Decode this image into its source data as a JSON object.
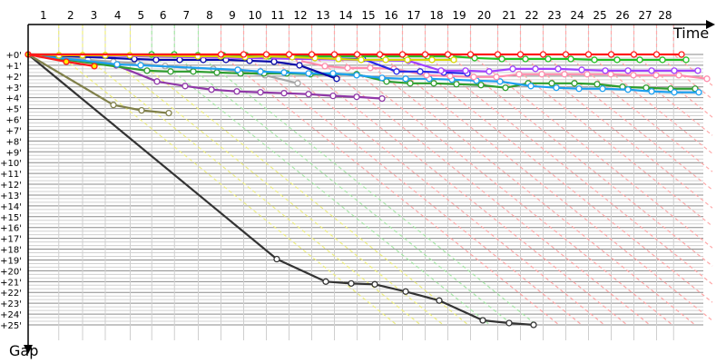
{
  "chart_data": {
    "type": "line",
    "xlabel": "Time",
    "ylabel": "Gap",
    "y_tick_labels": [
      "+0'",
      "+1'",
      "+2'",
      "+3'",
      "+4'",
      "+5'",
      "+6'",
      "+7'",
      "+8'",
      "+9'",
      "+10'",
      "+11'",
      "+12'",
      "+13'",
      "+14'",
      "+15'",
      "+16'",
      "+17'",
      "+18'",
      "+19'",
      "+20'",
      "+21'",
      "+22'",
      "+23'",
      "+24'",
      "+25'"
    ],
    "ylim": [
      0,
      25
    ],
    "y_inverted": true,
    "grid": true,
    "lap_labels": [
      "1",
      "2",
      "3",
      "4",
      "5",
      "6",
      "7",
      "8",
      "9",
      "10",
      "11",
      "12",
      "13",
      "14",
      "15",
      "16",
      "17",
      "18",
      "19",
      "20",
      "21",
      "22",
      "23",
      "24",
      "25",
      "26",
      "27",
      "28"
    ],
    "lap_end_times": [
      2.7,
      4.8,
      6.8,
      9.0,
      10.9,
      12.9,
      15.0,
      17.0,
      19.0,
      21.0,
      23.0,
      25.0,
      27.0,
      29.0,
      31.0,
      33.0,
      35.0,
      37.0,
      39.0,
      41.4,
      43.4,
      45.4,
      47.4,
      49.4,
      51.4,
      53.4,
      55.4,
      56.9
    ],
    "lap_line_colors": [
      "#eeee80",
      "#eeee80",
      "#eeee80",
      "#eeee80",
      "#a8e8a8",
      "#a8e8a8",
      "#a8e8a8",
      "#ffa8a8",
      "#ffa8a8",
      "#ffa8a8",
      "#ffa8a8",
      "#ffa8a8",
      "#ffa8a8",
      "#ffa8a8",
      "#ffa8a8",
      "#ffa8a8",
      "#ffa8a8",
      "#ffa8a8",
      "#ffa8a8",
      "#ffa8a8",
      "#ffa8a8",
      "#ffa8a8",
      "#ffa8a8",
      "#ffa8a8",
      "#ffa8a8",
      "#ffa8a8",
      "#ffa8a8",
      "#ffa8a8"
    ],
    "series": [
      {
        "color": "#333333",
        "marker_fill": "#ffffff",
        "points": [
          [
            0,
            0
          ],
          [
            21.92,
            18.92
          ],
          [
            26.24,
            21.0
          ],
          [
            28.48,
            21.17
          ],
          [
            30.56,
            21.25
          ],
          [
            33.28,
            21.92
          ],
          [
            36.24,
            22.75
          ],
          [
            40.08,
            24.58
          ],
          [
            42.4,
            24.83
          ],
          [
            44.56,
            25.0
          ]
        ]
      },
      {
        "color": "#80804a",
        "marker_fill": "#ffffff",
        "points": [
          [
            0,
            0
          ],
          [
            7.52,
            4.67
          ],
          [
            10.0,
            5.17
          ],
          [
            12.4,
            5.42
          ]
        ]
      },
      {
        "color": "#9038a8",
        "marker_fill": "#ffffff",
        "points": [
          [
            0,
            0
          ],
          [
            7.76,
            1.0
          ],
          [
            11.36,
            2.5
          ],
          [
            13.84,
            2.92
          ],
          [
            16.16,
            3.25
          ],
          [
            18.4,
            3.42
          ],
          [
            20.48,
            3.5
          ],
          [
            22.56,
            3.58
          ],
          [
            24.72,
            3.67
          ],
          [
            26.88,
            3.83
          ],
          [
            28.96,
            3.92
          ],
          [
            31.2,
            4.08
          ]
        ]
      },
      {
        "color": "#a8a8a8",
        "marker_fill": "#ffffff",
        "points": [
          [
            0,
            0
          ],
          [
            5.28,
            0.5
          ],
          [
            7.52,
            0.67
          ],
          [
            9.68,
            0.83
          ],
          [
            12.08,
            1.08
          ],
          [
            14.16,
            1.25
          ],
          [
            16.32,
            1.33
          ],
          [
            18.72,
            1.58
          ],
          [
            20.88,
            1.92
          ],
          [
            23.76,
            2.67
          ]
        ]
      },
      {
        "color": "#2e9e2e",
        "marker_fill": "#ffffff",
        "points": [
          [
            0,
            0
          ],
          [
            10.48,
            1.5
          ],
          [
            12.56,
            1.58
          ],
          [
            14.56,
            1.58
          ],
          [
            16.64,
            1.67
          ],
          [
            18.72,
            1.75
          ],
          [
            20.8,
            1.75
          ],
          [
            22.8,
            1.75
          ],
          [
            24.88,
            1.83
          ],
          [
            26.88,
            1.83
          ],
          [
            28.96,
            1.83
          ],
          [
            31.6,
            2.5
          ],
          [
            33.68,
            2.67
          ],
          [
            35.76,
            2.67
          ],
          [
            37.76,
            2.75
          ],
          [
            39.92,
            2.83
          ],
          [
            42.08,
            3.08
          ],
          [
            44.08,
            2.67
          ],
          [
            46.16,
            2.67
          ],
          [
            48.16,
            2.67
          ],
          [
            50.16,
            2.75
          ],
          [
            52.4,
            3.0
          ],
          [
            54.48,
            3.08
          ],
          [
            56.64,
            3.17
          ],
          [
            58.8,
            3.17
          ]
        ]
      },
      {
        "color": "#1ea0f0",
        "marker_fill": "#ffffff",
        "points": [
          [
            0,
            0
          ],
          [
            7.84,
            0.92
          ],
          [
            9.92,
            1.0
          ],
          [
            18.48,
            1.42
          ],
          [
            20.48,
            1.58
          ],
          [
            22.56,
            1.67
          ],
          [
            24.72,
            1.75
          ],
          [
            26.88,
            1.75
          ],
          [
            28.96,
            1.92
          ],
          [
            31.2,
            2.17
          ],
          [
            33.28,
            2.25
          ],
          [
            35.36,
            2.25
          ],
          [
            37.36,
            2.33
          ],
          [
            39.52,
            2.42
          ],
          [
            41.6,
            2.5
          ],
          [
            44.32,
            2.92
          ],
          [
            46.56,
            3.08
          ],
          [
            48.56,
            3.17
          ],
          [
            50.64,
            3.17
          ],
          [
            52.88,
            3.25
          ],
          [
            54.96,
            3.42
          ],
          [
            56.96,
            3.5
          ],
          [
            59.12,
            3.5
          ]
        ]
      },
      {
        "color": "#ff8cac",
        "marker_fill": "#ffffff",
        "points": [
          [
            0,
            0
          ],
          [
            22.96,
            0.17
          ],
          [
            23.92,
            0.58
          ],
          [
            26.16,
            1.08
          ],
          [
            28.16,
            1.25
          ],
          [
            30.16,
            1.25
          ],
          [
            32.24,
            1.33
          ],
          [
            35.12,
            1.92
          ],
          [
            37.2,
            2.0
          ],
          [
            39.28,
            2.08
          ],
          [
            41.28,
            2.08
          ],
          [
            43.28,
            1.83
          ],
          [
            45.28,
            1.83
          ],
          [
            47.28,
            1.83
          ],
          [
            49.28,
            1.83
          ],
          [
            51.36,
            1.83
          ],
          [
            53.36,
            1.92
          ],
          [
            55.36,
            1.92
          ],
          [
            57.36,
            1.92
          ],
          [
            59.84,
            2.25
          ]
        ]
      },
      {
        "color": "#0a0aa8",
        "marker_fill": "#ffffff",
        "points": [
          [
            0,
            0
          ],
          [
            9.36,
            0.42
          ],
          [
            11.28,
            0.5
          ],
          [
            13.36,
            0.5
          ],
          [
            15.44,
            0.5
          ],
          [
            17.44,
            0.5
          ],
          [
            19.52,
            0.58
          ],
          [
            21.68,
            0.67
          ],
          [
            23.92,
            1.0
          ],
          [
            27.2,
            2.25
          ]
        ]
      },
      {
        "color": "#2828e8",
        "marker_fill": "#ffffff",
        "points": [
          [
            0,
            0
          ],
          [
            29.5,
            0.42
          ],
          [
            32.48,
            1.58
          ],
          [
            34.56,
            1.58
          ],
          [
            36.64,
            1.67
          ],
          [
            38.72,
            1.75
          ]
        ]
      },
      {
        "color": "#a040ff",
        "marker_fill": "#ffffff",
        "points": [
          [
            0,
            0
          ],
          [
            33.52,
            0.58
          ],
          [
            36.4,
            1.5
          ],
          [
            38.56,
            1.5
          ],
          [
            40.64,
            1.58
          ],
          [
            42.72,
            1.33
          ],
          [
            44.72,
            1.33
          ],
          [
            46.72,
            1.33
          ],
          [
            48.8,
            1.42
          ],
          [
            50.88,
            1.5
          ],
          [
            52.88,
            1.5
          ],
          [
            54.96,
            1.5
          ],
          [
            56.96,
            1.5
          ],
          [
            59.04,
            1.5
          ]
        ]
      },
      {
        "color": "#22c022",
        "marker_fill": "#ffffff",
        "points": [
          [
            0,
            0
          ],
          [
            10.88,
            0
          ],
          [
            12.88,
            0
          ],
          [
            14.96,
            0.08
          ],
          [
            17.2,
            0.08
          ],
          [
            19.2,
            0.08
          ],
          [
            21.2,
            0.17
          ],
          [
            23.2,
            0.17
          ],
          [
            25.2,
            0.17
          ],
          [
            27.2,
            0.17
          ],
          [
            29.2,
            0.17
          ],
          [
            31.28,
            0.17
          ],
          [
            33.28,
            0.17
          ],
          [
            35.2,
            0.17
          ],
          [
            37.28,
            0.17
          ],
          [
            39.36,
            0.33
          ],
          [
            41.76,
            0.42
          ],
          [
            43.84,
            0.42
          ],
          [
            45.84,
            0.42
          ],
          [
            47.84,
            0.42
          ],
          [
            49.92,
            0.5
          ],
          [
            51.92,
            0.5
          ],
          [
            53.92,
            0.5
          ],
          [
            55.92,
            0.5
          ],
          [
            58.0,
            0.5
          ]
        ]
      },
      {
        "color": "#d8d800",
        "marker_fill": "#ffffff",
        "points": [
          [
            0,
            0
          ],
          [
            2.72,
            0.08
          ],
          [
            4.8,
            0.08
          ],
          [
            6.8,
            0.08
          ],
          [
            8.96,
            0.08
          ],
          [
            14.96,
            0.17
          ],
          [
            16.96,
            0.17
          ],
          [
            19.12,
            0.25
          ],
          [
            20.96,
            0.17
          ],
          [
            23.28,
            0.25
          ],
          [
            25.28,
            0.33
          ],
          [
            27.36,
            0.42
          ],
          [
            29.36,
            0.5
          ],
          [
            31.52,
            0.5
          ],
          [
            33.44,
            0.5
          ],
          [
            35.6,
            0.5
          ],
          [
            37.52,
            0.5
          ]
        ]
      },
      {
        "color": "#ff1a1a",
        "marker_fill": "#ffee00",
        "points": [
          [
            0,
            0
          ],
          [
            3.36,
            0.67
          ],
          [
            5.84,
            1.08
          ]
        ]
      },
      {
        "color": "#ff1a1a",
        "marker_fill": "#ffffff",
        "points": [
          [
            0,
            0
          ],
          [
            17,
            0
          ],
          [
            19,
            0
          ],
          [
            21,
            0
          ],
          [
            23,
            0
          ],
          [
            25,
            0
          ],
          [
            27,
            0
          ],
          [
            29,
            0
          ],
          [
            31,
            0
          ],
          [
            33,
            0
          ],
          [
            35,
            0
          ],
          [
            37,
            0
          ],
          [
            39,
            0
          ],
          [
            41.4,
            0
          ],
          [
            43.4,
            0
          ],
          [
            45.4,
            0
          ],
          [
            47.4,
            0
          ],
          [
            49.4,
            0
          ],
          [
            51.4,
            0
          ],
          [
            53.4,
            0
          ],
          [
            55.4,
            0
          ],
          [
            57.6,
            0
          ]
        ]
      }
    ]
  }
}
